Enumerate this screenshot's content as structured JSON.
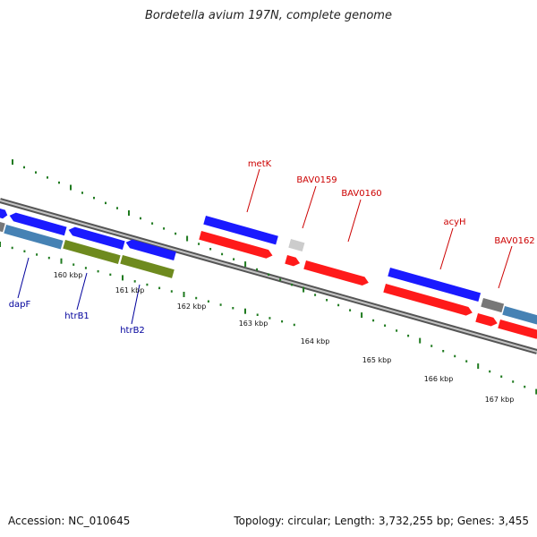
{
  "title": "Bordetella avium 197N, complete genome",
  "footer": {
    "accession": "Accession: NC_010645",
    "summary": "Topology: circular; Length: 3,732,255 bp; Genes: 3,455"
  },
  "colors": {
    "forward_gene": "#1a1aff",
    "reverse_gene": "#ff1a1a",
    "rna_gene": "#6e8a1e",
    "other_gene": "#4682b4",
    "pseudo_gene": "#777777",
    "unknown_gene": "#cccccc",
    "forward_label": "#cc0000",
    "reverse_label": "#00009c",
    "tick": "#1f7a1f",
    "backbone": "#888888"
  },
  "scale_labels": [
    "160 kbp",
    "161 kbp",
    "162 kbp",
    "163 kbp",
    "164 kbp",
    "165 kbp",
    "166 kbp",
    "167 kbp"
  ],
  "gene_labels": [
    "metK",
    "BAV0159",
    "BAV0160",
    "acyH",
    "BAV0162",
    "dapF",
    "htrB1",
    "htrB2"
  ]
}
